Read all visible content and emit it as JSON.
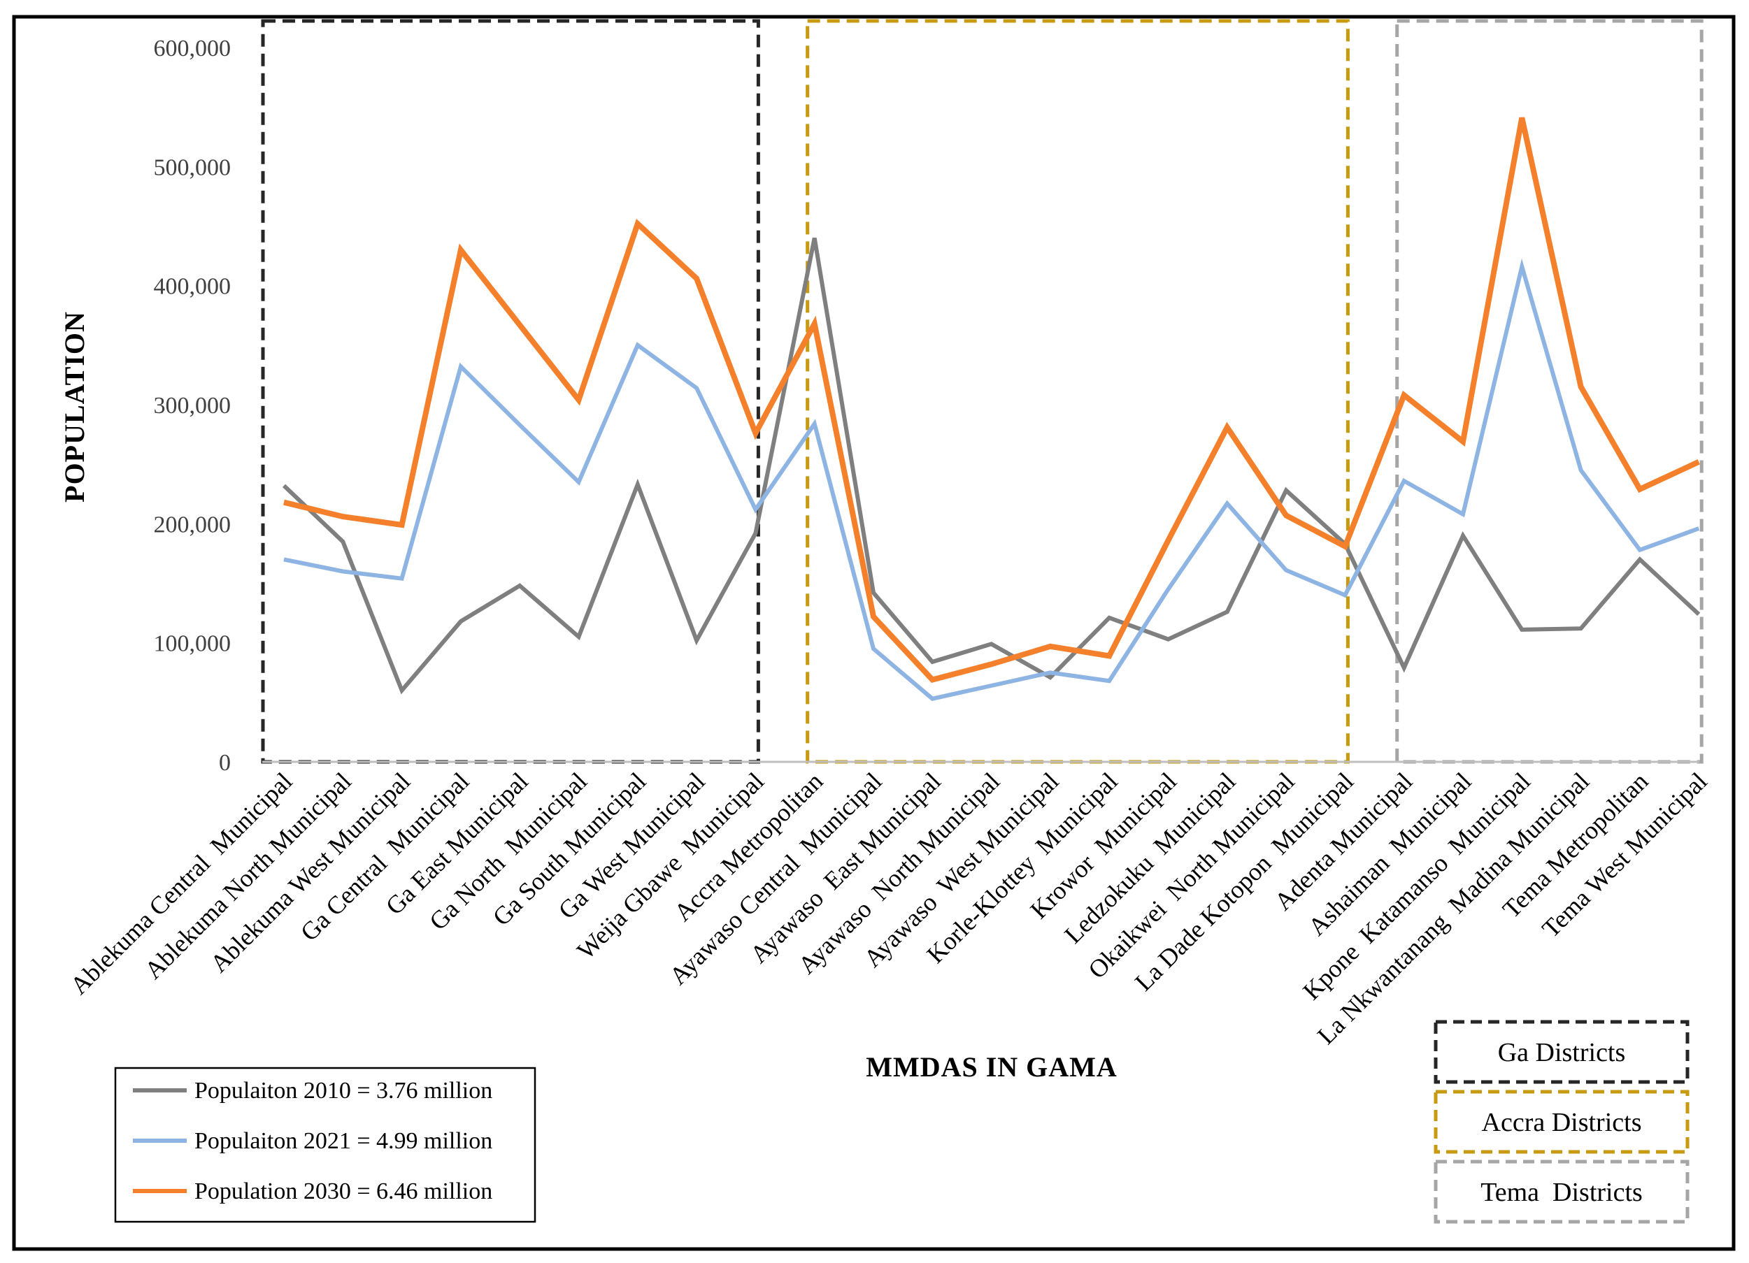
{
  "chart_data": {
    "type": "line",
    "title": "",
    "xlabel": "MMDAS IN GAMA",
    "ylabel": "POPULATION",
    "ylim": [
      0,
      600000
    ],
    "yticks": [
      0,
      100000,
      200000,
      300000,
      400000,
      500000,
      600000
    ],
    "ytick_labels": [
      "0",
      "100,000",
      "200,000",
      "300,000",
      "400,000",
      "500,000",
      "600,000"
    ],
    "grid": false,
    "legend_position": "bottom-left",
    "categories": [
      "Ablekuma Central  Municipal",
      "Ablekuma North Municipal",
      "Ablekuma West Municipal",
      "Ga Central  Municipal",
      "Ga East Municipal",
      "Ga North  Municipal",
      "Ga South Municipal",
      "Ga West Municipal",
      "Weija Gbawe  Municipal",
      "Accra Metropolitan",
      "Ayawaso Central  Municipal",
      "Ayawaso  East Municipal",
      "Ayawaso  North Municipal",
      "Ayawaso  West Municipal",
      "Korle-Klottey  Municipal",
      "Krowor  Municipal",
      "Ledzokuku  Municipal",
      "Okaikwei  North Municipal",
      "La Dade Kotopon  Municipal",
      "Adenta Municipal",
      "Ashaiman  Municipal",
      "Kpone  Katamanso  Municipal",
      "La Nkwantanang  Madina Municipal",
      "Tema Metropolitan",
      "Tema West Municipal"
    ],
    "series": [
      {
        "name": "Populaiton 2010 = 3.76 million",
        "color": "#7f7f7f",
        "values": [
          232000,
          185000,
          60000,
          118000,
          148000,
          105000,
          233000,
          102000,
          192000,
          440000,
          142000,
          84000,
          99000,
          71000,
          121000,
          103000,
          126000,
          228000,
          183000,
          79000,
          190000,
          111000,
          112000,
          170000,
          124000
        ]
      },
      {
        "name": "Populaiton 2021 = 4.99 million",
        "color": "#8eb4e3",
        "values": [
          170000,
          160000,
          154000,
          332000,
          283000,
          235000,
          350000,
          314000,
          212000,
          284000,
          95000,
          53000,
          64000,
          75000,
          68000,
          145000,
          217000,
          161000,
          140000,
          236000,
          208000,
          416000,
          245000,
          178000,
          196000
        ]
      },
      {
        "name": "Population 2030 = 6.46 million",
        "color": "#f5802b",
        "values": [
          218000,
          206000,
          199000,
          430000,
          367000,
          304000,
          452000,
          406000,
          276000,
          368000,
          122000,
          69000,
          82000,
          97000,
          89000,
          186000,
          281000,
          207000,
          181000,
          308000,
          269000,
          541000,
          315000,
          229000,
          252000
        ]
      }
    ],
    "district_groups": [
      {
        "name": "Ga Districts",
        "color": "#262626",
        "first": 0,
        "last": 8
      },
      {
        "name": "Accra Districts",
        "color": "#c79a10",
        "first": 9,
        "last": 18
      },
      {
        "name": "Tema  Districts",
        "color": "#a6a6a6",
        "first": 19,
        "last": 24
      }
    ]
  }
}
